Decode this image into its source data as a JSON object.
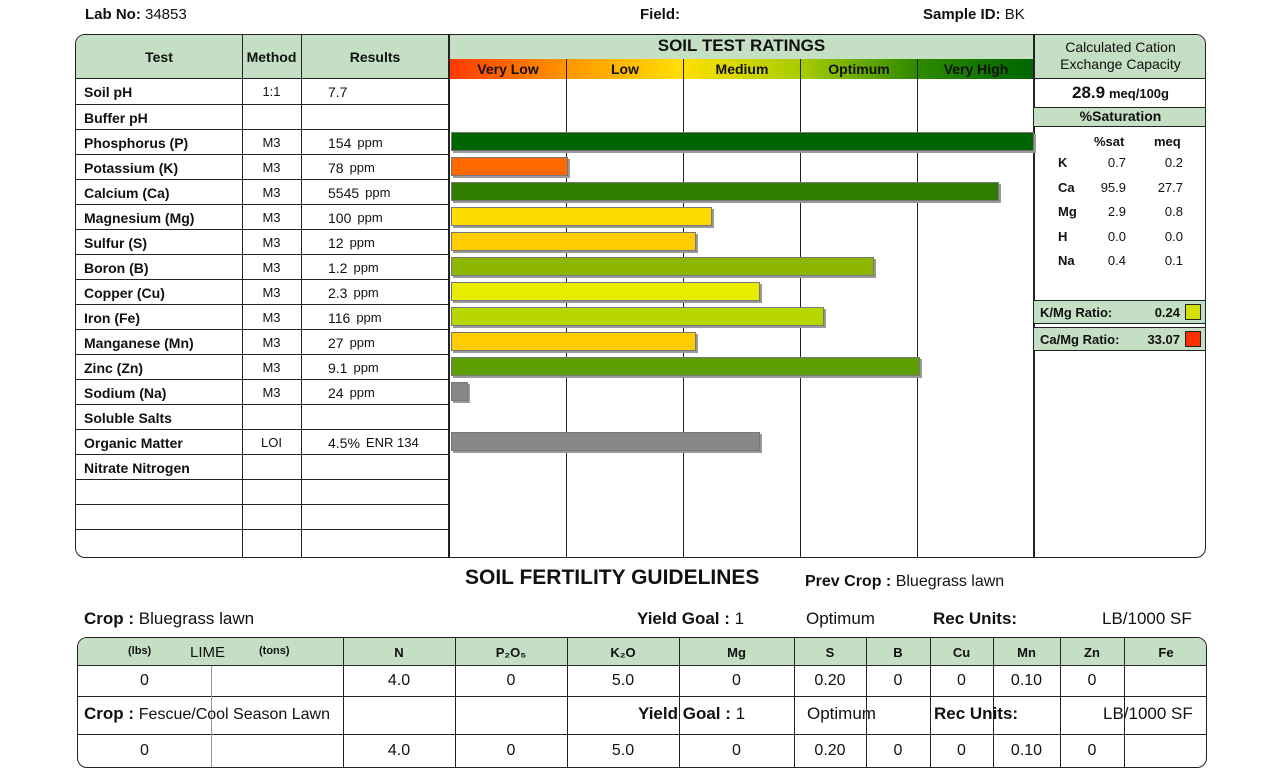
{
  "header": {
    "lab_label": "Lab No:",
    "lab_value": "34853",
    "field_label": "Field:",
    "sample_label": "Sample ID:",
    "sample_value": "BK"
  },
  "table_headers": {
    "test": "Test",
    "method": "Method",
    "results": "Results",
    "ratings_title": "SOIL TEST RATINGS",
    "cec_title_1": "Calculated Cation",
    "cec_title_2": "Exchange Capacity"
  },
  "rating_scale": [
    {
      "label": "Very Low",
      "color": "#ff3a00"
    },
    {
      "label": "Low",
      "color": "#ff9500"
    },
    {
      "label": "Medium",
      "color": "#ffe000"
    },
    {
      "label": "Optimum",
      "color": "#a8cc00"
    },
    {
      "label": "Very High",
      "color": "#2d8a00"
    }
  ],
  "rows": [
    {
      "test": "Soil pH",
      "method": "1:1",
      "result": "7.7",
      "unit": ""
    },
    {
      "test": "Buffer pH",
      "method": "",
      "result": "",
      "unit": ""
    },
    {
      "test": "Phosphorus (P)",
      "method": "M3",
      "result": "154",
      "unit": "ppm",
      "rating": 1.0,
      "color": "#006400"
    },
    {
      "test": "Potassium (K)",
      "method": "M3",
      "result": "78",
      "unit": "ppm",
      "rating": 0.2,
      "color": "#ff6a00"
    },
    {
      "test": "Calcium (Ca)",
      "method": "M3",
      "result": "5545",
      "unit": "ppm",
      "rating": 0.94,
      "color": "#2e7d00"
    },
    {
      "test": "Magnesium (Mg)",
      "method": "M3",
      "result": "100",
      "unit": "ppm",
      "rating": 0.447,
      "color": "#ffdc00"
    },
    {
      "test": "Sulfur (S)",
      "method": "M3",
      "result": "12",
      "unit": "ppm",
      "rating": 0.42,
      "color": "#ffcc00"
    },
    {
      "test": "Boron (B)",
      "method": "M3",
      "result": "1.2",
      "unit": "ppm",
      "rating": 0.726,
      "color": "#8db600"
    },
    {
      "test": "Copper (Cu)",
      "method": "M3",
      "result": "2.3",
      "unit": "ppm",
      "rating": 0.53,
      "color": "#e8ec00"
    },
    {
      "test": "Iron (Fe)",
      "method": "M3",
      "result": "116",
      "unit": "ppm",
      "rating": 0.64,
      "color": "#b8d600"
    },
    {
      "test": "Manganese (Mn)",
      "method": "M3",
      "result": "27",
      "unit": "ppm",
      "rating": 0.42,
      "color": "#ffcc00"
    },
    {
      "test": "Zinc (Zn)",
      "method": "M3",
      "result": "9.1",
      "unit": "ppm",
      "rating": 0.805,
      "color": "#5a9e00"
    },
    {
      "test": "Sodium (Na)",
      "method": "M3",
      "result": "24",
      "unit": "ppm",
      "rating": 0.03,
      "color": "#888888"
    },
    {
      "test": "Soluble Salts",
      "method": "",
      "result": "",
      "unit": ""
    },
    {
      "test": "Organic Matter",
      "method": "LOI",
      "result": "4.5%",
      "unit": "ENR 134",
      "rating": 0.53,
      "color": "#888888"
    },
    {
      "test": "Nitrate Nitrogen",
      "method": "",
      "result": "",
      "unit": ""
    },
    {
      "test": "",
      "method": "",
      "result": "",
      "unit": ""
    },
    {
      "test": "",
      "method": "",
      "result": "",
      "unit": ""
    },
    {
      "test": "",
      "method": "",
      "result": "",
      "unit": ""
    }
  ],
  "cec": {
    "value": "28.9",
    "unit": "meq/100g",
    "saturation_title": "%Saturation",
    "col_sat": "%sat",
    "col_meq": "meq",
    "items": [
      {
        "ion": "K",
        "sat": "0.7",
        "meq": "0.2"
      },
      {
        "ion": "Ca",
        "sat": "95.9",
        "meq": "27.7"
      },
      {
        "ion": "Mg",
        "sat": "2.9",
        "meq": "0.8"
      },
      {
        "ion": "H",
        "sat": "0.0",
        "meq": "0.0"
      },
      {
        "ion": "Na",
        "sat": "0.4",
        "meq": "0.1"
      }
    ],
    "k_mg_label": "K/Mg Ratio:",
    "k_mg_value": "0.24",
    "k_mg_color": "#d4e000",
    "ca_mg_label": "Ca/Mg Ratio:",
    "ca_mg_value": "33.07",
    "ca_mg_color": "#ff3000"
  },
  "guidelines": {
    "title": "SOIL FERTILITY GUIDELINES",
    "prev_crop_label": "Prev Crop :",
    "prev_crop": "Bluegrass lawn",
    "columns": {
      "lbs": "(lbs)",
      "lime": "LIME",
      "tons": "(tons)",
      "n": "N",
      "p2o5": "P₂O₅",
      "k2o": "K₂O",
      "mg": "Mg",
      "s": "S",
      "b": "B",
      "cu": "Cu",
      "mn": "Mn",
      "zn": "Zn",
      "fe": "Fe"
    },
    "crops": [
      {
        "crop_label": "Crop :",
        "crop": "Bluegrass lawn",
        "yield_label": "Yield Goal :",
        "yield": "1",
        "level": "Optimum",
        "units_label": "Rec Units:",
        "units": "LB/1000 SF",
        "values": [
          "0",
          "",
          "4.0",
          "0",
          "5.0",
          "0",
          "0.20",
          "0",
          "0",
          "0.10",
          "0",
          ""
        ]
      },
      {
        "crop_label": "Crop :",
        "crop": "Fescue/Cool Season Lawn",
        "yield_label": "Yield Goal :",
        "yield": "1",
        "level": "Optimum",
        "units_label": "Rec Units:",
        "units": "LB/1000 SF",
        "values": [
          "0",
          "",
          "4.0",
          "0",
          "5.0",
          "0",
          "0.20",
          "0",
          "0",
          "0.10",
          "0",
          ""
        ]
      }
    ]
  }
}
